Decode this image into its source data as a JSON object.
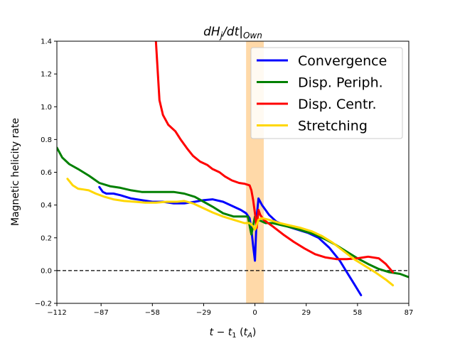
{
  "chart_data": {
    "type": "line",
    "title": "dH_j/dt|_Own",
    "title_parts": {
      "d": "d",
      "H": "H",
      "j": "j",
      "slash_dt": "/dt|",
      "own": "Own"
    },
    "xlabel": "t − t_1 (t_A)",
    "xlabel_parts": {
      "t": "t",
      "minus": " − ",
      "t1": "t",
      "sub1": "1",
      "unit_open": " (",
      "unit": "t",
      "unit_sub": "A",
      "unit_close": ")"
    },
    "ylabel": "Magnetic helicity rate",
    "xlim": [
      -112,
      87
    ],
    "ylim": [
      -0.2,
      1.4
    ],
    "xticks": [
      -112,
      -87,
      -58,
      -29,
      0,
      29,
      58,
      87
    ],
    "xtick_labels": [
      "−112",
      "−87",
      "−58",
      "−29",
      "0",
      "29",
      "58",
      "87"
    ],
    "yticks": [
      -0.2,
      0.0,
      0.2,
      0.4,
      0.6,
      0.8,
      1.0,
      1.2,
      1.4
    ],
    "ytick_labels": [
      "−0.2",
      "0.0",
      "0.2",
      "0.4",
      "0.6",
      "0.8",
      "1.0",
      "1.2",
      "1.4"
    ],
    "shaded_region": {
      "x0": -5,
      "x1": 5,
      "color": "#ffd9a8"
    },
    "reference_line": {
      "y": 0.0,
      "style": "dashed",
      "color": "#000000"
    },
    "legend_position": "top-right",
    "series": [
      {
        "name": "Convergence",
        "color": "#0000ff",
        "x": [
          -88,
          -86,
          -84,
          -80,
          -76,
          -70,
          -64,
          -58,
          -52,
          -46,
          -40,
          -34,
          -29,
          -24,
          -18,
          -12,
          -8,
          -5,
          -3,
          -2,
          -1,
          0,
          1,
          2,
          4,
          8,
          12,
          18,
          24,
          30,
          36,
          42,
          48,
          52,
          56,
          60
        ],
        "y": [
          0.51,
          0.48,
          0.47,
          0.47,
          0.46,
          0.44,
          0.43,
          0.42,
          0.42,
          0.41,
          0.41,
          0.42,
          0.43,
          0.435,
          0.42,
          0.39,
          0.37,
          0.35,
          0.32,
          0.25,
          0.15,
          0.06,
          0.33,
          0.44,
          0.4,
          0.34,
          0.3,
          0.27,
          0.25,
          0.23,
          0.2,
          0.14,
          0.06,
          -0.01,
          -0.08,
          -0.15
        ]
      },
      {
        "name": "Disp. Periph.",
        "color": "#008000",
        "x": [
          -112,
          -109,
          -105,
          -100,
          -94,
          -88,
          -82,
          -76,
          -70,
          -64,
          -58,
          -52,
          -46,
          -40,
          -34,
          -29,
          -24,
          -18,
          -12,
          -8,
          -4,
          -2,
          0,
          2,
          6,
          10,
          16,
          22,
          28,
          34,
          40,
          46,
          52,
          58,
          64,
          70,
          76,
          82,
          87
        ],
        "y": [
          0.75,
          0.69,
          0.65,
          0.62,
          0.58,
          0.535,
          0.515,
          0.505,
          0.49,
          0.48,
          0.48,
          0.48,
          0.48,
          0.47,
          0.45,
          0.42,
          0.39,
          0.35,
          0.33,
          0.33,
          0.33,
          0.22,
          0.33,
          0.31,
          0.29,
          0.29,
          0.275,
          0.26,
          0.24,
          0.22,
          0.19,
          0.155,
          0.115,
          0.075,
          0.04,
          0.01,
          -0.01,
          -0.02,
          -0.04
        ]
      },
      {
        "name": "Disp. Centr.",
        "color": "#ff0000",
        "x": [
          -56,
          -54,
          -52,
          -49,
          -45,
          -42,
          -38,
          -35,
          -31,
          -27,
          -24,
          -20,
          -17,
          -13,
          -9,
          -6,
          -3,
          -2,
          -1,
          0,
          1,
          2,
          3,
          5,
          10,
          16,
          22,
          28,
          34,
          40,
          46,
          52,
          58,
          64,
          70,
          74,
          78
        ],
        "y": [
          1.4,
          1.04,
          0.95,
          0.89,
          0.85,
          0.8,
          0.74,
          0.7,
          0.665,
          0.645,
          0.62,
          0.6,
          0.575,
          0.55,
          0.535,
          0.53,
          0.52,
          0.49,
          0.43,
          0.35,
          0.26,
          0.37,
          0.34,
          0.31,
          0.27,
          0.22,
          0.175,
          0.135,
          0.1,
          0.08,
          0.07,
          0.07,
          0.075,
          0.085,
          0.075,
          0.04,
          -0.01
        ]
      },
      {
        "name": "Stretching",
        "color": "#ffd700",
        "x": [
          -106,
          -103,
          -100,
          -97,
          -94,
          -90,
          -85,
          -80,
          -74,
          -68,
          -62,
          -56,
          -50,
          -44,
          -40,
          -35,
          -29,
          -24,
          -18,
          -12,
          -6,
          -3,
          -1,
          0,
          1,
          2,
          4,
          8,
          14,
          20,
          26,
          32,
          38,
          44,
          50,
          56,
          62,
          68,
          74,
          78
        ],
        "y": [
          0.56,
          0.52,
          0.5,
          0.495,
          0.49,
          0.47,
          0.45,
          0.435,
          0.425,
          0.42,
          0.415,
          0.415,
          0.42,
          0.42,
          0.425,
          0.41,
          0.38,
          0.355,
          0.33,
          0.31,
          0.29,
          0.29,
          0.27,
          0.25,
          0.28,
          0.31,
          0.32,
          0.31,
          0.29,
          0.275,
          0.26,
          0.24,
          0.21,
          0.17,
          0.12,
          0.07,
          0.03,
          -0.01,
          -0.055,
          -0.09
        ]
      }
    ]
  }
}
